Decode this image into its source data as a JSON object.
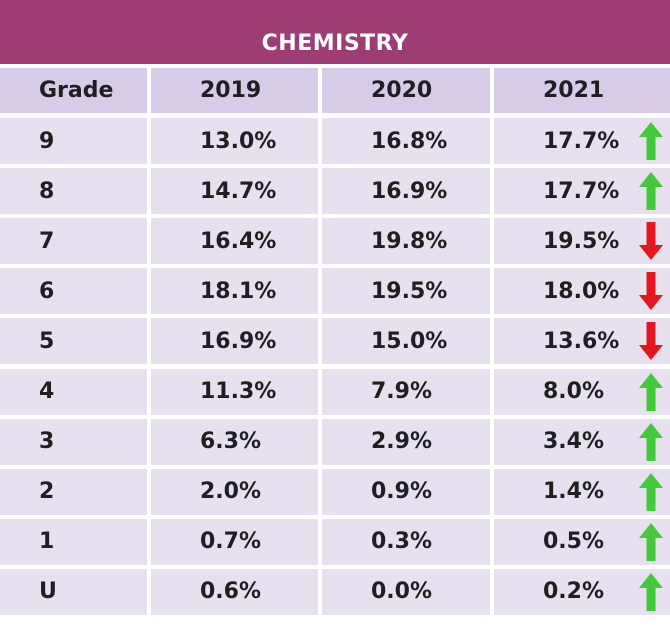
{
  "title": "CHEMISTRY",
  "colors": {
    "banner": "#9d3d73",
    "header_fill": "#d8cbe8",
    "cell_fill": "#e7e0ef",
    "up": "#44c93a",
    "down": "#e3171f"
  },
  "chart_data": {
    "type": "table",
    "title": "CHEMISTRY",
    "columns": [
      "Grade",
      "2019",
      "2020",
      "2021"
    ],
    "rows": [
      {
        "grade": "9",
        "y2019": "13.0%",
        "y2020": "16.8%",
        "y2021": "17.7%",
        "trend": "up"
      },
      {
        "grade": "8",
        "y2019": "14.7%",
        "y2020": "16.9%",
        "y2021": "17.7%",
        "trend": "up"
      },
      {
        "grade": "7",
        "y2019": "16.4%",
        "y2020": "19.8%",
        "y2021": "19.5%",
        "trend": "down"
      },
      {
        "grade": "6",
        "y2019": "18.1%",
        "y2020": "19.5%",
        "y2021": "18.0%",
        "trend": "down"
      },
      {
        "grade": "5",
        "y2019": "16.9%",
        "y2020": "15.0%",
        "y2021": "13.6%",
        "trend": "down"
      },
      {
        "grade": "4",
        "y2019": "11.3%",
        "y2020": "7.9%",
        "y2021": "8.0%",
        "trend": "up"
      },
      {
        "grade": "3",
        "y2019": "6.3%",
        "y2020": "2.9%",
        "y2021": "3.4%",
        "trend": "up"
      },
      {
        "grade": "2",
        "y2019": "2.0%",
        "y2020": "0.9%",
        "y2021": "1.4%",
        "trend": "up"
      },
      {
        "grade": "1",
        "y2019": "0.7%",
        "y2020": "0.3%",
        "y2021": "0.5%",
        "trend": "up"
      },
      {
        "grade": "U",
        "y2019": "0.6%",
        "y2020": "0.0%",
        "y2021": "0.2%",
        "trend": "up"
      }
    ]
  }
}
